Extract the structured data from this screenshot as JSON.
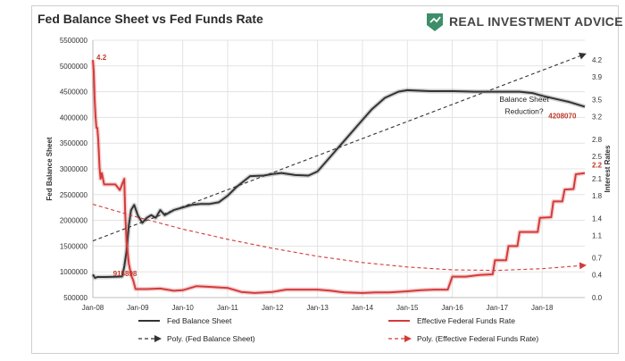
{
  "chart_data": {
    "type": "line",
    "title": "Fed Balance Sheet vs Fed Funds Rate",
    "brand": "REAL INVESTMENT ADVICE",
    "ylabel_left": "Fed Balance Sheet",
    "ylabel_right": "Interest Rates",
    "yticks_left": [
      "500000",
      "1000000",
      "1500000",
      "2000000",
      "2500000",
      "3000000",
      "3500000",
      "4000000",
      "4500000",
      "5000000",
      "5500000"
    ],
    "yticks_right": [
      "0.0",
      "0.4",
      "0.7",
      "1.1",
      "1.4",
      "1.8",
      "2.1",
      "2.5",
      "2.8",
      "3.2",
      "3.5",
      "3.9",
      "4.2"
    ],
    "xticks": [
      "Jan-08",
      "Jan-09",
      "Jan-10",
      "Jan-11",
      "Jan-12",
      "Jan-13",
      "Jan-14",
      "Jan-15",
      "Jan-16",
      "Jan-17",
      "Jan-18"
    ],
    "ylim_left": [
      500000,
      5500000
    ],
    "ylim_right": [
      0,
      4.55
    ],
    "xlim": [
      2008.0,
      2018.95
    ],
    "annotations": [
      {
        "text": "4.2",
        "x": 2008.08,
        "y": 4.2,
        "axis": "right"
      },
      {
        "text": "915898",
        "x": 2008.45,
        "y": 915898,
        "axis": "left"
      },
      {
        "text": "Balance Sheet",
        "x": 2017.6,
        "y": 4300000,
        "axis": "left"
      },
      {
        "text": "Reduction?",
        "x": 2017.6,
        "y": 4070000,
        "axis": "left"
      },
      {
        "text": "4208070",
        "x": 2018.45,
        "y": 3980000,
        "axis": "left"
      },
      {
        "text": "2.2",
        "x": 2018.95,
        "y": 2.3,
        "axis": "right"
      }
    ],
    "legend": {
      "position": "bottom",
      "items": [
        "Fed Balance Sheet",
        "Effective Federal Funds Rate",
        "Poly. (Fed Balance Sheet)",
        "Poly. (Effective Federal Funds Rate)"
      ]
    },
    "series": [
      {
        "name": "Fed Balance Sheet",
        "axis": "left",
        "color": "#333333",
        "points": [
          [
            2008.0,
            950000
          ],
          [
            2008.05,
            880000
          ],
          [
            2008.1,
            900000
          ],
          [
            2008.3,
            900000
          ],
          [
            2008.5,
            905000
          ],
          [
            2008.65,
            910000
          ],
          [
            2008.7,
            1100000
          ],
          [
            2008.75,
            1400000
          ],
          [
            2008.8,
            1900000
          ],
          [
            2008.85,
            2200000
          ],
          [
            2008.92,
            2300000
          ],
          [
            2009.0,
            2100000
          ],
          [
            2009.1,
            1950000
          ],
          [
            2009.2,
            2050000
          ],
          [
            2009.3,
            2100000
          ],
          [
            2009.4,
            2050000
          ],
          [
            2009.5,
            2200000
          ],
          [
            2009.6,
            2100000
          ],
          [
            2009.8,
            2200000
          ],
          [
            2010.0,
            2250000
          ],
          [
            2010.2,
            2300000
          ],
          [
            2010.4,
            2320000
          ],
          [
            2010.6,
            2320000
          ],
          [
            2010.8,
            2350000
          ],
          [
            2011.0,
            2480000
          ],
          [
            2011.2,
            2650000
          ],
          [
            2011.4,
            2790000
          ],
          [
            2011.5,
            2860000
          ],
          [
            2011.8,
            2870000
          ],
          [
            2012.0,
            2900000
          ],
          [
            2012.2,
            2920000
          ],
          [
            2012.5,
            2880000
          ],
          [
            2012.8,
            2870000
          ],
          [
            2013.0,
            2950000
          ],
          [
            2013.3,
            3250000
          ],
          [
            2013.6,
            3550000
          ],
          [
            2013.9,
            3850000
          ],
          [
            2014.2,
            4150000
          ],
          [
            2014.5,
            4380000
          ],
          [
            2014.8,
            4500000
          ],
          [
            2015.0,
            4530000
          ],
          [
            2015.5,
            4510000
          ],
          [
            2016.0,
            4510000
          ],
          [
            2016.5,
            4500000
          ],
          [
            2017.0,
            4500000
          ],
          [
            2017.5,
            4500000
          ],
          [
            2017.8,
            4470000
          ],
          [
            2018.0,
            4420000
          ],
          [
            2018.3,
            4360000
          ],
          [
            2018.6,
            4300000
          ],
          [
            2018.95,
            4208070
          ]
        ]
      },
      {
        "name": "Effective Federal Funds Rate",
        "axis": "right",
        "color": "#d43a3a",
        "points": [
          [
            2008.0,
            4.2
          ],
          [
            2008.02,
            4.0
          ],
          [
            2008.04,
            3.5
          ],
          [
            2008.06,
            3.2
          ],
          [
            2008.08,
            3.0
          ],
          [
            2008.1,
            3.0
          ],
          [
            2008.12,
            2.8
          ],
          [
            2008.15,
            2.3
          ],
          [
            2008.17,
            2.1
          ],
          [
            2008.2,
            2.2
          ],
          [
            2008.25,
            2.0
          ],
          [
            2008.3,
            2.0
          ],
          [
            2008.5,
            2.0
          ],
          [
            2008.6,
            1.9
          ],
          [
            2008.7,
            2.1
          ],
          [
            2008.72,
            1.5
          ],
          [
            2008.75,
            1.0
          ],
          [
            2008.8,
            0.6
          ],
          [
            2008.85,
            0.4
          ],
          [
            2008.9,
            0.3
          ],
          [
            2008.95,
            0.15
          ],
          [
            2009.0,
            0.15
          ],
          [
            2009.2,
            0.15
          ],
          [
            2009.5,
            0.16
          ],
          [
            2009.8,
            0.12
          ],
          [
            2010.0,
            0.13
          ],
          [
            2010.3,
            0.2
          ],
          [
            2010.6,
            0.19
          ],
          [
            2011.0,
            0.17
          ],
          [
            2011.3,
            0.1
          ],
          [
            2011.6,
            0.08
          ],
          [
            2012.0,
            0.1
          ],
          [
            2012.3,
            0.14
          ],
          [
            2012.6,
            0.14
          ],
          [
            2013.0,
            0.14
          ],
          [
            2013.3,
            0.12
          ],
          [
            2013.6,
            0.09
          ],
          [
            2014.0,
            0.08
          ],
          [
            2014.3,
            0.09
          ],
          [
            2014.6,
            0.09
          ],
          [
            2015.0,
            0.11
          ],
          [
            2015.3,
            0.13
          ],
          [
            2015.6,
            0.14
          ],
          [
            2015.9,
            0.14
          ],
          [
            2016.0,
            0.37
          ],
          [
            2016.3,
            0.37
          ],
          [
            2016.6,
            0.4
          ],
          [
            2016.9,
            0.41
          ],
          [
            2016.95,
            0.66
          ],
          [
            2017.2,
            0.66
          ],
          [
            2017.25,
            0.91
          ],
          [
            2017.45,
            0.91
          ],
          [
            2017.5,
            1.16
          ],
          [
            2017.9,
            1.16
          ],
          [
            2017.95,
            1.41
          ],
          [
            2018.2,
            1.42
          ],
          [
            2018.25,
            1.7
          ],
          [
            2018.45,
            1.7
          ],
          [
            2018.5,
            1.91
          ],
          [
            2018.7,
            1.92
          ],
          [
            2018.75,
            2.18
          ],
          [
            2018.95,
            2.2
          ]
        ]
      },
      {
        "name": "Poly. (Fed Balance Sheet)",
        "axis": "left",
        "color": "#333333",
        "dashed": true,
        "arrow": true,
        "points": [
          [
            2008.0,
            1600000
          ],
          [
            2018.95,
            5230000
          ]
        ]
      },
      {
        "name": "Poly. (Effective Federal Funds Rate)",
        "axis": "right",
        "color": "#d43a3a",
        "dashed": true,
        "arrow": true,
        "points": [
          [
            2008.0,
            1.65
          ],
          [
            2009.0,
            1.42
          ],
          [
            2010.0,
            1.21
          ],
          [
            2011.0,
            1.03
          ],
          [
            2012.0,
            0.87
          ],
          [
            2013.0,
            0.73
          ],
          [
            2014.0,
            0.62
          ],
          [
            2015.0,
            0.54
          ],
          [
            2016.0,
            0.49
          ],
          [
            2017.0,
            0.48
          ],
          [
            2018.0,
            0.51
          ],
          [
            2018.95,
            0.57
          ]
        ]
      }
    ]
  }
}
